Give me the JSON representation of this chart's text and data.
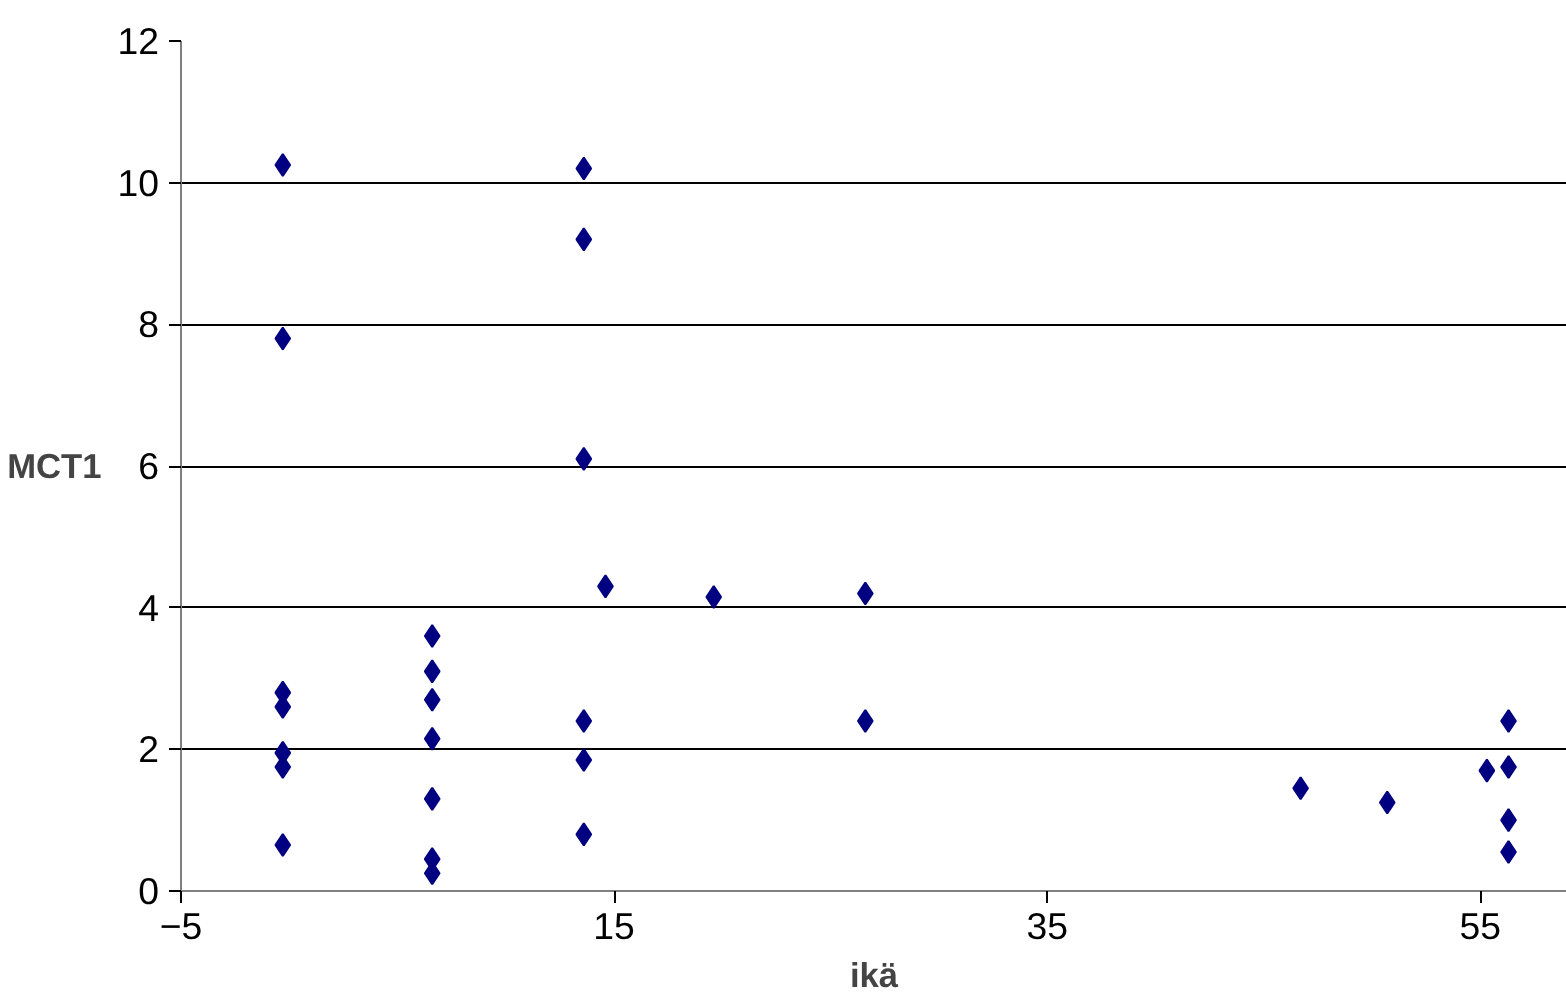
{
  "chart_data": {
    "type": "scatter",
    "xlabel": "ikä",
    "ylabel": "MCT1",
    "marker": "diamond",
    "grid": "y",
    "color": "#000080",
    "x": [
      -0.3,
      -0.3,
      -0.3,
      -0.3,
      -0.3,
      -0.3,
      -0.3,
      6.6,
      6.6,
      6.6,
      6.6,
      6.6,
      6.6,
      6.6,
      13.6,
      13.6,
      13.6,
      13.6,
      13.6,
      13.6,
      14.6,
      19.6,
      26.6,
      26.6,
      46.7,
      50.7,
      55.3,
      56.3,
      56.3,
      56.3,
      56.3
    ],
    "values": [
      10.25,
      7.8,
      2.8,
      2.6,
      1.95,
      1.75,
      0.65,
      3.6,
      3.1,
      2.7,
      2.15,
      1.3,
      0.45,
      0.25,
      10.2,
      9.2,
      6.1,
      2.4,
      1.85,
      0.8,
      4.3,
      4.15,
      4.2,
      2.4,
      1.45,
      1.25,
      1.7,
      2.4,
      1.75,
      1.0,
      0.55
    ],
    "xlim": [
      -5,
      59
    ],
    "ylim": [
      0,
      12
    ],
    "xticks": [
      -5,
      15,
      35,
      55
    ],
    "yticks": [
      0,
      2,
      4,
      6,
      8,
      10,
      12
    ]
  }
}
